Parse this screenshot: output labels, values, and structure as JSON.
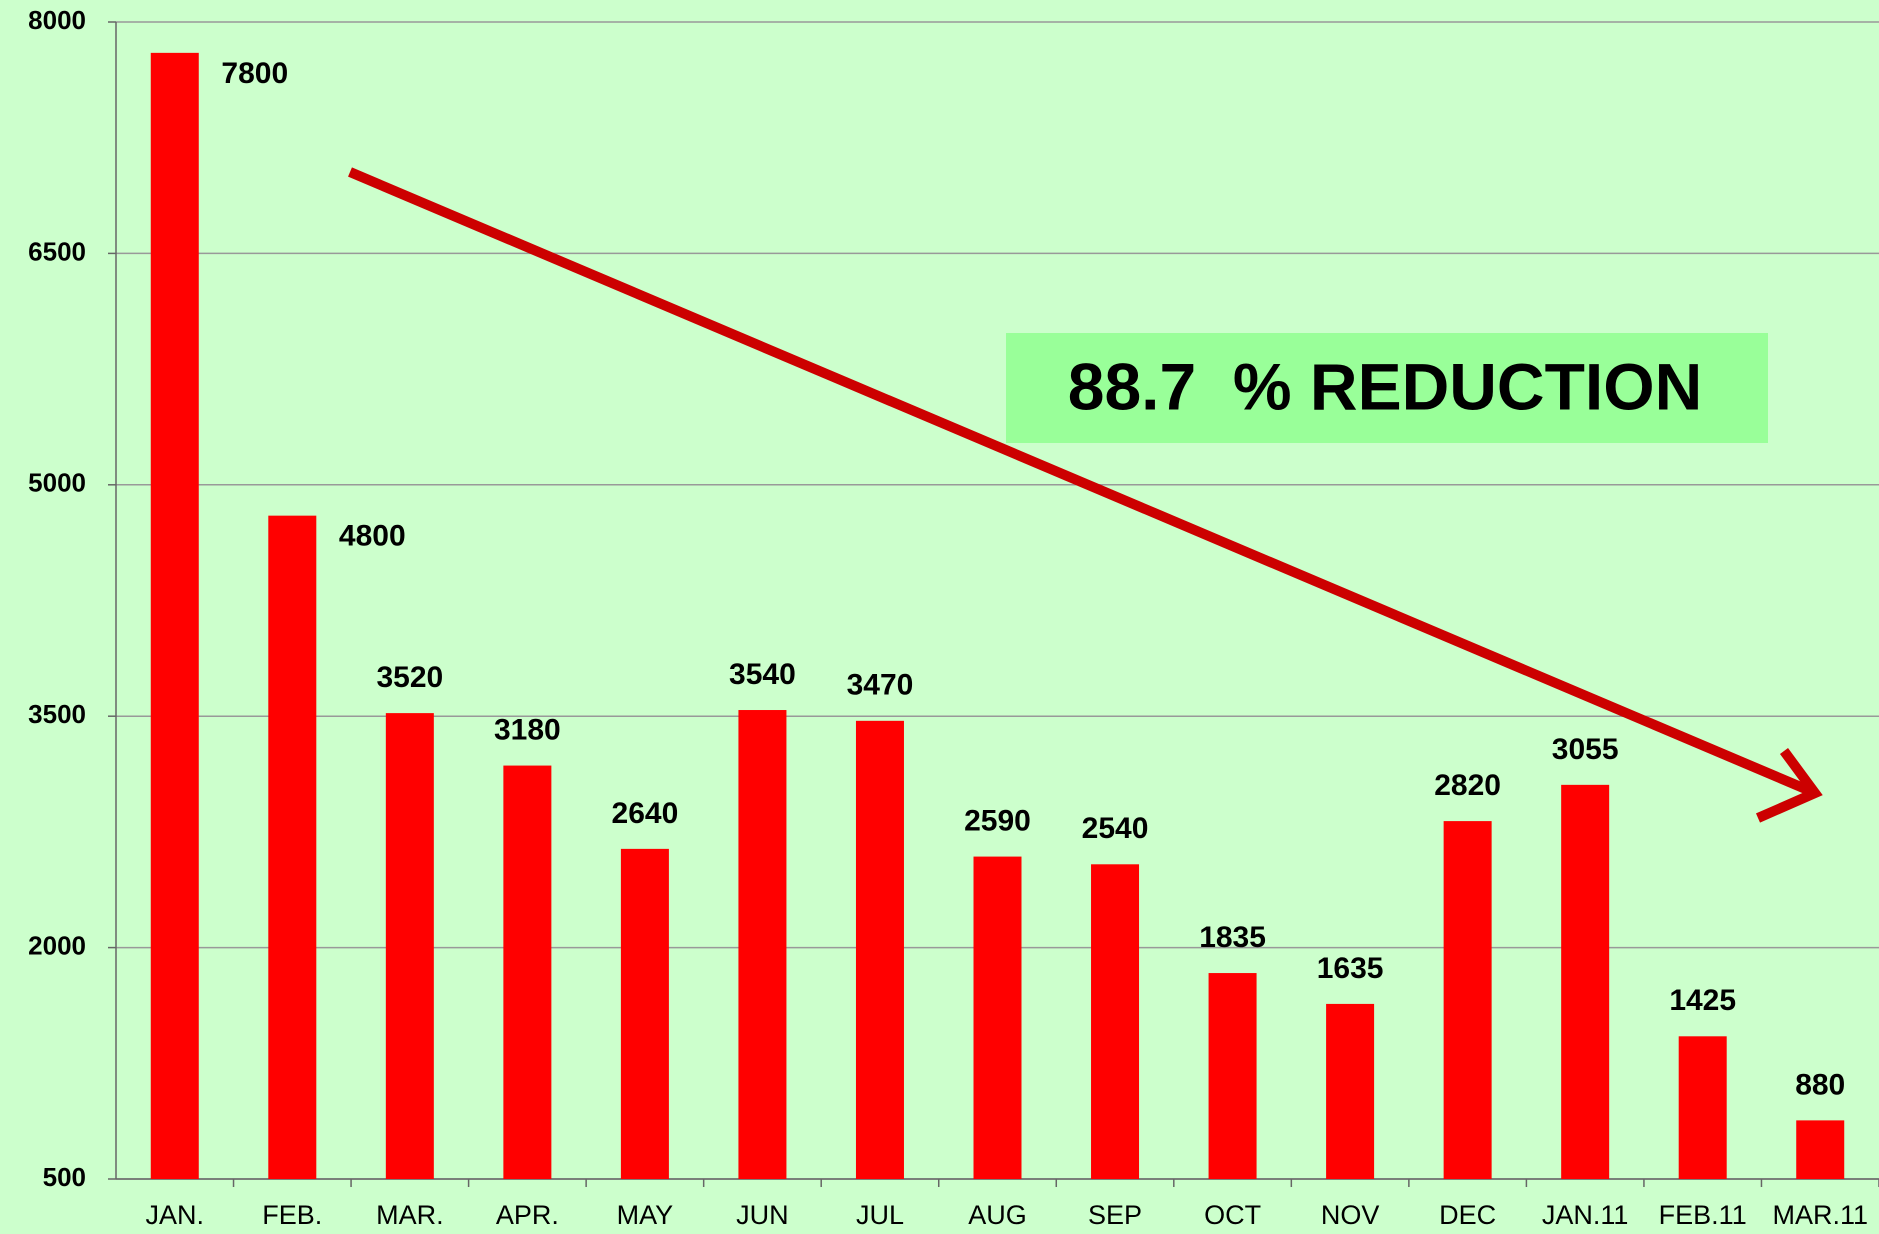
{
  "chart_data": {
    "type": "bar",
    "categories": [
      "JAN.",
      "FEB.",
      "MAR.",
      "APR.",
      "MAY",
      "JUN",
      "JUL",
      "AUG",
      "SEP",
      "OCT",
      "NOV",
      "DEC",
      "JAN.11",
      "FEB.11",
      "MAR.11"
    ],
    "values": [
      7800,
      4800,
      3520,
      3180,
      2640,
      3540,
      3470,
      2590,
      2540,
      1835,
      1635,
      2820,
      3055,
      1425,
      880
    ],
    "color": "#ff0000",
    "ylim": [
      500,
      8000
    ],
    "yticks": [
      500,
      2000,
      3500,
      5000,
      6500,
      8000
    ],
    "grid": true,
    "annotation": "88.7  % REDUCTION"
  }
}
